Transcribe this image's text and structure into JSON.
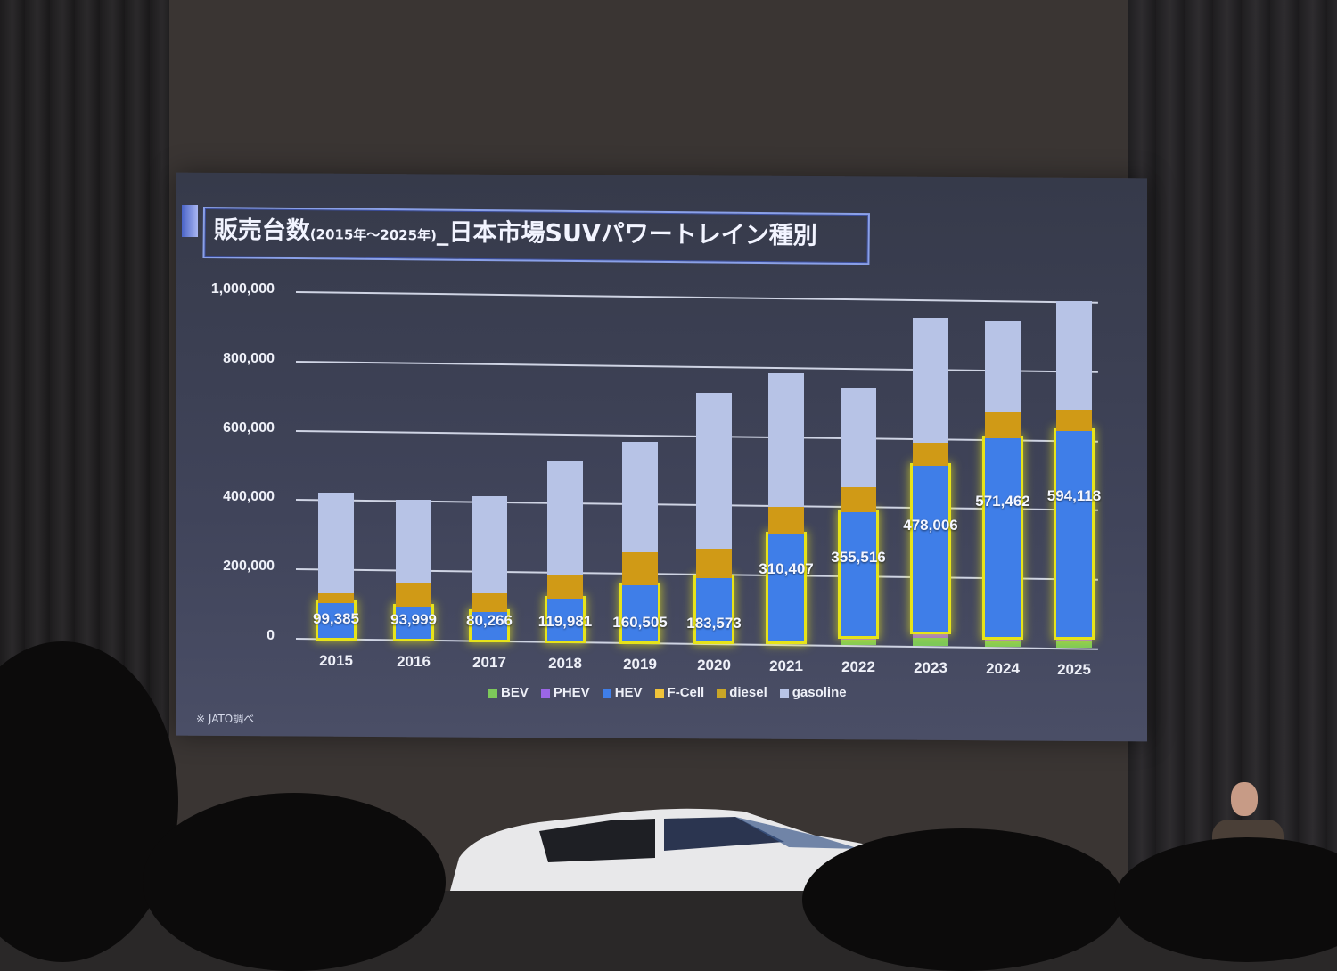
{
  "slide": {
    "title_main_1": "販売台数",
    "title_range": "(2015年～2025年)",
    "title_main_2": "_日本市場SUVパワートレイン種別",
    "source_note": "※ JATO調べ"
  },
  "colors": {
    "BEV": "#7dc95a",
    "PHEV": "#9b66e6",
    "HEV": "#3f7ee8",
    "F-Cell": "#f0c33a",
    "diesel": "#d09a16",
    "gasoline": "#b7c3e6",
    "highlight": "#e6e31a"
  },
  "chart_data": {
    "type": "bar",
    "stacked": true,
    "title": "販売台数(2015年～2025年)_日本市場SUVパワートレイン種別",
    "xlabel": "",
    "ylabel": "",
    "ylim": [
      0,
      1000000
    ],
    "yticks": [
      "0",
      "200,000",
      "400,000",
      "600,000",
      "800,000",
      "1,000,000"
    ],
    "grid": true,
    "legend_position": "bottom",
    "categories": [
      "2015",
      "2016",
      "2017",
      "2018",
      "2019",
      "2020",
      "2021",
      "2022",
      "2023",
      "2024",
      "2025"
    ],
    "series": [
      {
        "name": "BEV",
        "values": [
          500,
          500,
          800,
          1000,
          1500,
          2000,
          3000,
          15000,
          25000,
          20000,
          22000
        ]
      },
      {
        "name": "PHEV",
        "values": [
          1000,
          1000,
          1000,
          1500,
          2000,
          2500,
          4000,
          12000,
          18000,
          10000,
          9000
        ]
      },
      {
        "name": "HEV",
        "values": [
          99385,
          93999,
          80266,
          119981,
          160505,
          183573,
          310407,
          355516,
          478006,
          571462,
          594118
        ]
      },
      {
        "name": "F-Cell",
        "values": [
          0,
          0,
          0,
          0,
          0,
          0,
          0,
          0,
          0,
          0,
          0
        ]
      },
      {
        "name": "diesel",
        "values": [
          30000,
          67000,
          53000,
          68000,
          95000,
          85000,
          80000,
          72000,
          65000,
          75000,
          62000
        ]
      },
      {
        "name": "gasoline",
        "values": [
          290000,
          240000,
          280000,
          330000,
          320000,
          450000,
          385000,
          290000,
          360000,
          265000,
          315000
        ]
      }
    ],
    "data_labels": [
      "99,385",
      "93,999",
      "80,266",
      "119,981",
      "160,505",
      "183,573",
      "310,407",
      "355,516",
      "478,006",
      "571,462",
      "594,118"
    ],
    "highlighted_series": "HEV",
    "annotations": [
      "※ JATO調べ"
    ]
  },
  "legend": [
    {
      "label": "BEV",
      "color": "#7dc95a"
    },
    {
      "label": "PHEV",
      "color": "#9b66e6"
    },
    {
      "label": "HEV",
      "color": "#3f7ee8"
    },
    {
      "label": "F-Cell",
      "color": "#f0c33a"
    },
    {
      "label": "diesel",
      "color": "#c9a626"
    },
    {
      "label": "gasoline",
      "color": "#b7c3e6"
    }
  ]
}
